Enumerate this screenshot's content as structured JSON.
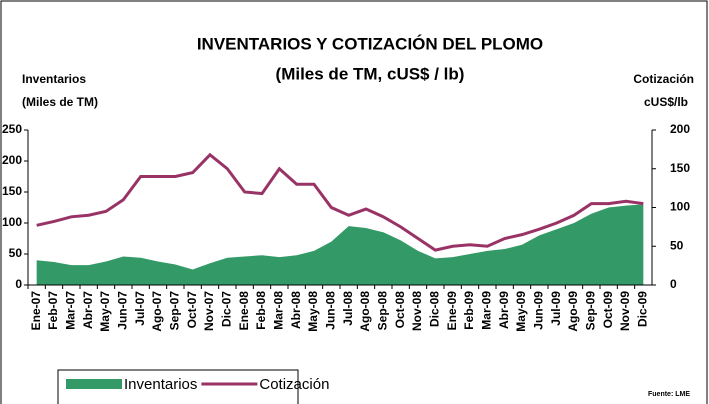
{
  "chart_data": {
    "type": "area-line",
    "title": "INVENTARIOS Y COTIZACIÓN DEL PLOMO",
    "subtitle": "(Miles de TM, cUS$ / lb)",
    "y_label": [
      "Inventarios",
      "(Miles de TM)"
    ],
    "y2_label": [
      "Cotización",
      "cUS$/lb"
    ],
    "source": "Fuente: LME",
    "categories": [
      "Ene-07",
      "Feb-07",
      "Mar-07",
      "Abr-07",
      "May-07",
      "Jun-07",
      "Jul-07",
      "Ago-07",
      "Sep-07",
      "Oct-07",
      "Nov-07",
      "Dic-07",
      "Ene-08",
      "Feb-08",
      "Mar-08",
      "Abr-08",
      "May-08",
      "Jun-08",
      "Jul-08",
      "Ago-08",
      "Sep-08",
      "Oct-08",
      "Nov-08",
      "Dic-08",
      "Ene-09",
      "Feb-09",
      "Mar-09",
      "Abr-09",
      "May-09",
      "Jun-09",
      "Jul-09",
      "Ago-09",
      "Sep-09",
      "Oct-09",
      "Nov-09",
      "Dic-09"
    ],
    "series": [
      {
        "name": "Inventarios",
        "color": "#339966",
        "kind": "area",
        "values": [
          40,
          37,
          32,
          32,
          38,
          46,
          44,
          38,
          33,
          25,
          35,
          44,
          46,
          48,
          45,
          48,
          55,
          70,
          95,
          92,
          85,
          72,
          55,
          43,
          45,
          50,
          55,
          58,
          65,
          80,
          90,
          100,
          115,
          125,
          128,
          130
        ]
      },
      {
        "name": "Cotización",
        "color": "#993366",
        "kind": "line",
        "axis": "y2",
        "values": [
          77,
          82,
          88,
          90,
          95,
          110,
          140,
          140,
          140,
          145,
          168,
          150,
          120,
          118,
          150,
          130,
          130,
          100,
          90,
          98,
          88,
          75,
          60,
          45,
          50,
          52,
          50,
          60,
          65,
          72,
          80,
          90,
          105,
          105,
          108,
          105
        ]
      }
    ],
    "ylim": [
      0,
      250
    ],
    "yticks": [
      0,
      50,
      100,
      150,
      200,
      250
    ],
    "y2lim": [
      0,
      200
    ],
    "y2ticks": [
      0,
      50,
      100,
      150,
      200
    ],
    "grid": false,
    "legend": "bottom-left"
  }
}
